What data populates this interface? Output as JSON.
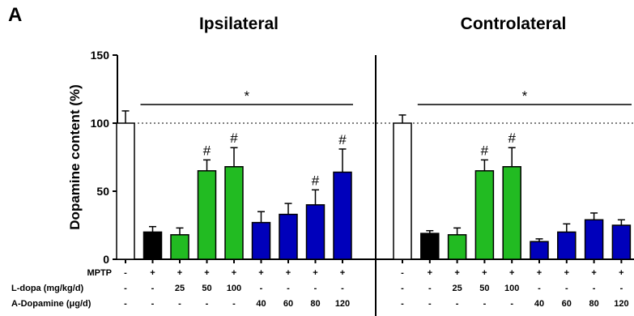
{
  "figure": {
    "panel_label": "A"
  },
  "chart_data": [
    {
      "type": "bar",
      "title": "Ipsilateral",
      "ylabel": "Dopamine content (%)",
      "ylim": [
        0,
        150
      ],
      "yticks": [
        0,
        50,
        100,
        150
      ],
      "reference_line": 100,
      "values": [
        100,
        20,
        18,
        65,
        68,
        27,
        33,
        40,
        64
      ],
      "errors": [
        9,
        4,
        5,
        8,
        14,
        8,
        8,
        11,
        17
      ],
      "bar_colors": [
        "#ffffff",
        "#000000",
        "#22bb22",
        "#22bb22",
        "#22bb22",
        "#0000bb",
        "#0000bb",
        "#0000bb",
        "#0000bb"
      ],
      "hash_marks": [
        false,
        false,
        false,
        true,
        true,
        false,
        false,
        true,
        true
      ],
      "significance": {
        "symbol": "*",
        "from_bar": 1,
        "to_bar": 8
      },
      "hash_symbol": "#"
    },
    {
      "type": "bar",
      "title": "Controlateral",
      "ylim": [
        0,
        150
      ],
      "reference_line": 100,
      "values": [
        100,
        19,
        18,
        65,
        68,
        13,
        20,
        29,
        25
      ],
      "errors": [
        6,
        2,
        5,
        8,
        14,
        2,
        6,
        5,
        4
      ],
      "bar_colors": [
        "#ffffff",
        "#000000",
        "#22bb22",
        "#22bb22",
        "#22bb22",
        "#0000bb",
        "#0000bb",
        "#0000bb",
        "#0000bb"
      ],
      "hash_marks": [
        false,
        false,
        false,
        true,
        true,
        false,
        false,
        false,
        false
      ],
      "significance": {
        "symbol": "*",
        "from_bar": 1,
        "to_bar": 8
      },
      "hash_symbol": "#"
    }
  ],
  "conditions": [
    {
      "label": "MPTP",
      "values": [
        "-",
        "+",
        "+",
        "+",
        "+",
        "+",
        "+",
        "+",
        "+"
      ]
    },
    {
      "label": "L-dopa (mg/kg/d)",
      "values": [
        "-",
        "-",
        "25",
        "50",
        "100",
        "-",
        "-",
        "-",
        "-"
      ]
    },
    {
      "label": "A-Dopamine (μg/d)",
      "values": [
        "-",
        "-",
        "-",
        "-",
        "-",
        "40",
        "60",
        "80",
        "120"
      ]
    }
  ]
}
